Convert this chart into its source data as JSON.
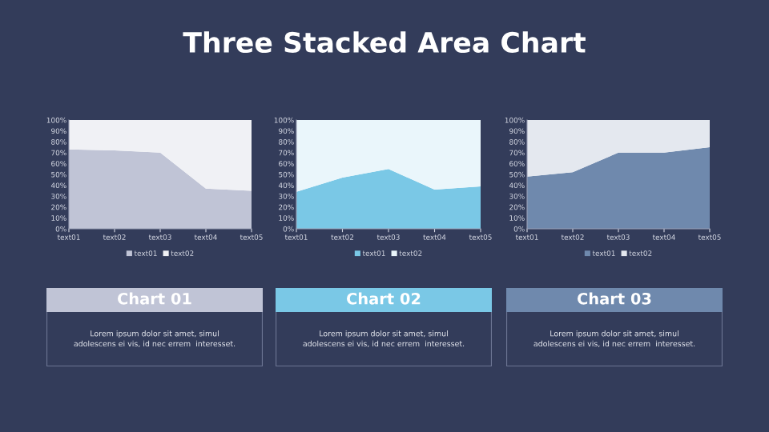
{
  "chart_data": [
    {
      "type": "other",
      "title": "Three Stacked Area Chart"
    },
    {
      "type": "area",
      "stacked": true,
      "categories": [
        "text01",
        "text02",
        "text03",
        "text04",
        "text05"
      ],
      "ylim": [
        0,
        100
      ],
      "yticks": [
        {
          "value": 0,
          "label": "0%"
        },
        {
          "value": 10,
          "label": "10%"
        },
        {
          "value": 20,
          "label": "20%"
        },
        {
          "value": 30,
          "label": "30%"
        },
        {
          "value": 40,
          "label": "40%"
        },
        {
          "value": 50,
          "label": "50%"
        },
        {
          "value": 60,
          "label": "60%"
        },
        {
          "value": 70,
          "label": "70%"
        },
        {
          "value": 80,
          "label": "80%"
        },
        {
          "value": 90,
          "label": "90%"
        },
        {
          "value": 100,
          "label": "100%"
        }
      ],
      "legend": "bottom",
      "series": [
        {
          "name": "text01",
          "color": "#c0c4d6",
          "values": [
            73,
            72,
            70,
            37,
            35
          ]
        },
        {
          "name": "text02",
          "color": "#f0f1f5",
          "values": [
            27,
            28,
            30,
            63,
            65
          ]
        }
      ]
    },
    {
      "type": "area",
      "stacked": true,
      "categories": [
        "text01",
        "text02",
        "text03",
        "text04",
        "text05"
      ],
      "ylim": [
        0,
        100
      ],
      "yticks": [
        {
          "value": 0,
          "label": "0%"
        },
        {
          "value": 10,
          "label": "10%"
        },
        {
          "value": 20,
          "label": "20%"
        },
        {
          "value": 30,
          "label": "30%"
        },
        {
          "value": 40,
          "label": "40%"
        },
        {
          "value": 50,
          "label": "50%"
        },
        {
          "value": 60,
          "label": "60%"
        },
        {
          "value": 70,
          "label": "70%"
        },
        {
          "value": 80,
          "label": "80%"
        },
        {
          "value": 90,
          "label": "90%"
        },
        {
          "value": 100,
          "label": "100%"
        }
      ],
      "legend": "bottom",
      "series": [
        {
          "name": "text01",
          "color": "#7ac8e6",
          "values": [
            34,
            47,
            55,
            36,
            39
          ]
        },
        {
          "name": "text02",
          "color": "#eaf6fb",
          "values": [
            66,
            53,
            45,
            64,
            61
          ]
        }
      ]
    },
    {
      "type": "area",
      "stacked": true,
      "categories": [
        "text01",
        "text02",
        "text03",
        "text04",
        "text05"
      ],
      "ylim": [
        0,
        100
      ],
      "yticks": [
        {
          "value": 0,
          "label": "0%"
        },
        {
          "value": 10,
          "label": "10%"
        },
        {
          "value": 20,
          "label": "20%"
        },
        {
          "value": 30,
          "label": "30%"
        },
        {
          "value": 40,
          "label": "40%"
        },
        {
          "value": 50,
          "label": "50%"
        },
        {
          "value": 60,
          "label": "60%"
        },
        {
          "value": 70,
          "label": "70%"
        },
        {
          "value": 80,
          "label": "80%"
        },
        {
          "value": 90,
          "label": "90%"
        },
        {
          "value": 100,
          "label": "100%"
        }
      ],
      "legend": "bottom",
      "series": [
        {
          "name": "text01",
          "color": "#6f89ad",
          "values": [
            48,
            52,
            70,
            70,
            75
          ]
        },
        {
          "name": "text02",
          "color": "#e4e8ef",
          "values": [
            52,
            48,
            30,
            30,
            25
          ]
        }
      ]
    },
    {
      "type": "other",
      "title": "Chart 01",
      "colors": [
        "#c0c4d6"
      ],
      "annotations": [
        "Lorem ipsum dolor sit amet, simul\nadolescens ei vis, id nec errem  interesset."
      ]
    },
    {
      "type": "other",
      "title": "Chart 02",
      "colors": [
        "#7ac8e6"
      ],
      "annotations": [
        "Lorem ipsum dolor sit amet, simul\nadolescens ei vis, id nec errem  interesset."
      ]
    },
    {
      "type": "other",
      "title": "Chart 03",
      "colors": [
        "#6f89ad"
      ],
      "annotations": [
        "Lorem ipsum dolor sit amet, simul\nadolescens ei vis, id nec errem  interesset."
      ]
    }
  ]
}
